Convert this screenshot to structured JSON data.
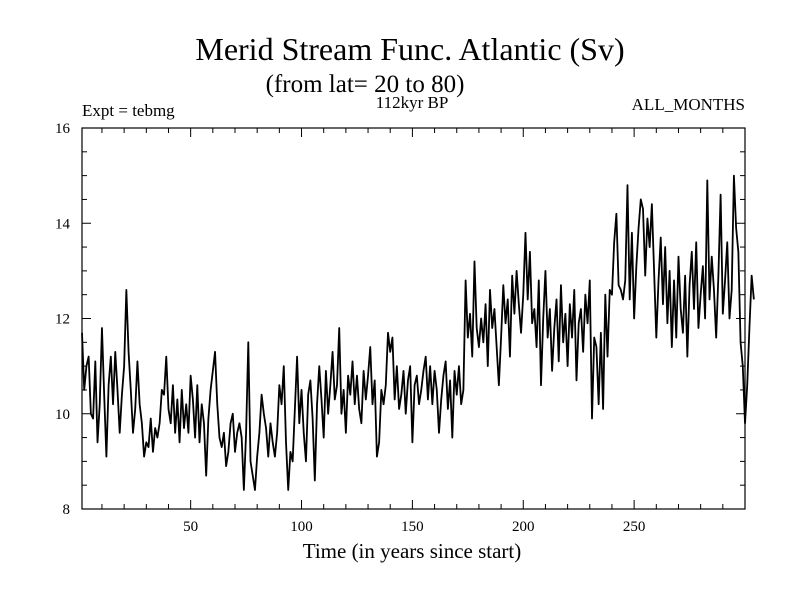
{
  "chart_data": {
    "type": "line",
    "title": "Merid Stream Func. Atlantic (Sv)",
    "subtitle": "(from lat= 20 to 80)",
    "annotations": {
      "left": "Expt = tebmg",
      "center": "112kyr BP",
      "right": "ALL_MONTHS"
    },
    "xlabel": "Time (in years since start)",
    "ylabel": "",
    "xlim": [
      1,
      300
    ],
    "ylim": [
      8,
      16
    ],
    "x_ticks": [
      50,
      100,
      150,
      200,
      250
    ],
    "x_tick_labels": [
      "50",
      "100",
      "150",
      "200",
      "250"
    ],
    "y_ticks": [
      8,
      10,
      12,
      14,
      16
    ],
    "y_tick_labels": [
      "8",
      "10",
      "12",
      "14",
      "16"
    ],
    "x_minor_step": 10,
    "y_minor_step": 0.5,
    "grid": false,
    "series": [
      {
        "name": "Merid Stream Func. Atlantic",
        "x_start": 1,
        "x_step": 1,
        "values": [
          11.7,
          10.5,
          11.0,
          11.2,
          10.0,
          9.9,
          11.1,
          9.4,
          10.2,
          11.8,
          10.4,
          9.1,
          10.6,
          11.2,
          10.2,
          11.3,
          10.5,
          9.6,
          10.4,
          11.0,
          12.6,
          11.3,
          10.5,
          9.6,
          10.1,
          11.1,
          10.2,
          9.8,
          9.1,
          9.4,
          9.3,
          9.9,
          9.2,
          9.7,
          9.5,
          9.8,
          10.5,
          10.4,
          11.2,
          10.1,
          9.8,
          10.6,
          9.6,
          10.3,
          9.4,
          10.5,
          9.7,
          10.2,
          9.6,
          10.8,
          10.3,
          9.5,
          10.6,
          9.4,
          10.2,
          9.8,
          8.7,
          9.9,
          10.5,
          10.9,
          11.3,
          10.2,
          9.5,
          9.3,
          9.6,
          8.9,
          9.2,
          9.8,
          10.0,
          9.2,
          9.6,
          9.8,
          9.5,
          8.4,
          9.6,
          11.5,
          9.0,
          8.7,
          8.4,
          9.1,
          9.6,
          10.4,
          10.0,
          9.7,
          9.1,
          9.8,
          9.4,
          9.1,
          9.6,
          10.6,
          10.2,
          11.0,
          9.4,
          8.4,
          9.2,
          9.0,
          10.1,
          11.2,
          9.8,
          10.5,
          9.6,
          9.0,
          10.4,
          10.7,
          9.9,
          8.6,
          10.2,
          11.0,
          10.3,
          9.5,
          10.9,
          10.0,
          10.6,
          11.3,
          10.3,
          10.6,
          11.8,
          10.0,
          10.5,
          9.6,
          10.8,
          10.4,
          11.1,
          10.2,
          10.8,
          10.1,
          9.8,
          10.9,
          10.3,
          10.8,
          11.4,
          10.2,
          10.7,
          9.1,
          9.4,
          10.5,
          10.2,
          10.6,
          11.7,
          11.3,
          11.6,
          10.3,
          11.0,
          10.1,
          10.4,
          10.9,
          10.0,
          10.7,
          11.0,
          9.4,
          10.6,
          10.8,
          10.2,
          10.5,
          10.9,
          11.2,
          10.3,
          11.0,
          10.2,
          10.9,
          10.5,
          9.6,
          10.3,
          10.8,
          11.1,
          10.1,
          10.7,
          9.5,
          10.9,
          10.4,
          11.0,
          10.2,
          10.5,
          12.8,
          11.6,
          12.1,
          11.2,
          13.2,
          11.8,
          11.4,
          12.0,
          11.5,
          12.3,
          11.0,
          12.6,
          11.8,
          12.2,
          11.4,
          10.6,
          11.6,
          12.7,
          11.9,
          12.4,
          11.2,
          12.9,
          12.1,
          13.0,
          12.3,
          11.7,
          12.5,
          13.8,
          12.4,
          13.4,
          11.9,
          12.2,
          11.4,
          12.8,
          10.6,
          12.0,
          13.0,
          11.6,
          12.2,
          10.9,
          11.8,
          12.4,
          11.1,
          12.7,
          11.5,
          12.1,
          11.0,
          12.3,
          11.6,
          12.6,
          10.7,
          11.9,
          12.2,
          11.3,
          12.5,
          11.9,
          12.8,
          9.9,
          11.6,
          11.4,
          10.2,
          11.7,
          10.1,
          12.5,
          11.2,
          12.6,
          12.5,
          13.6,
          14.2,
          12.7,
          12.6,
          12.4,
          12.8,
          14.8,
          12.4,
          13.8,
          12.0,
          13.1,
          13.9,
          14.5,
          14.3,
          12.9,
          14.1,
          13.5,
          14.4,
          13.0,
          11.6,
          12.8,
          13.7,
          12.3,
          13.5,
          11.9,
          13.0,
          11.4,
          12.8,
          11.6,
          13.3,
          12.2,
          11.7,
          12.9,
          11.2,
          12.7,
          13.4,
          12.2,
          13.6,
          11.8,
          12.5,
          13.1,
          12.0,
          14.9,
          12.4,
          13.3,
          12.6,
          11.6,
          12.9,
          14.6,
          12.1,
          12.8,
          13.6,
          12.0,
          12.6,
          15.0,
          13.9,
          13.4,
          11.5,
          11.0,
          9.8,
          10.6,
          11.8,
          12.9,
          12.4
        ]
      }
    ]
  }
}
